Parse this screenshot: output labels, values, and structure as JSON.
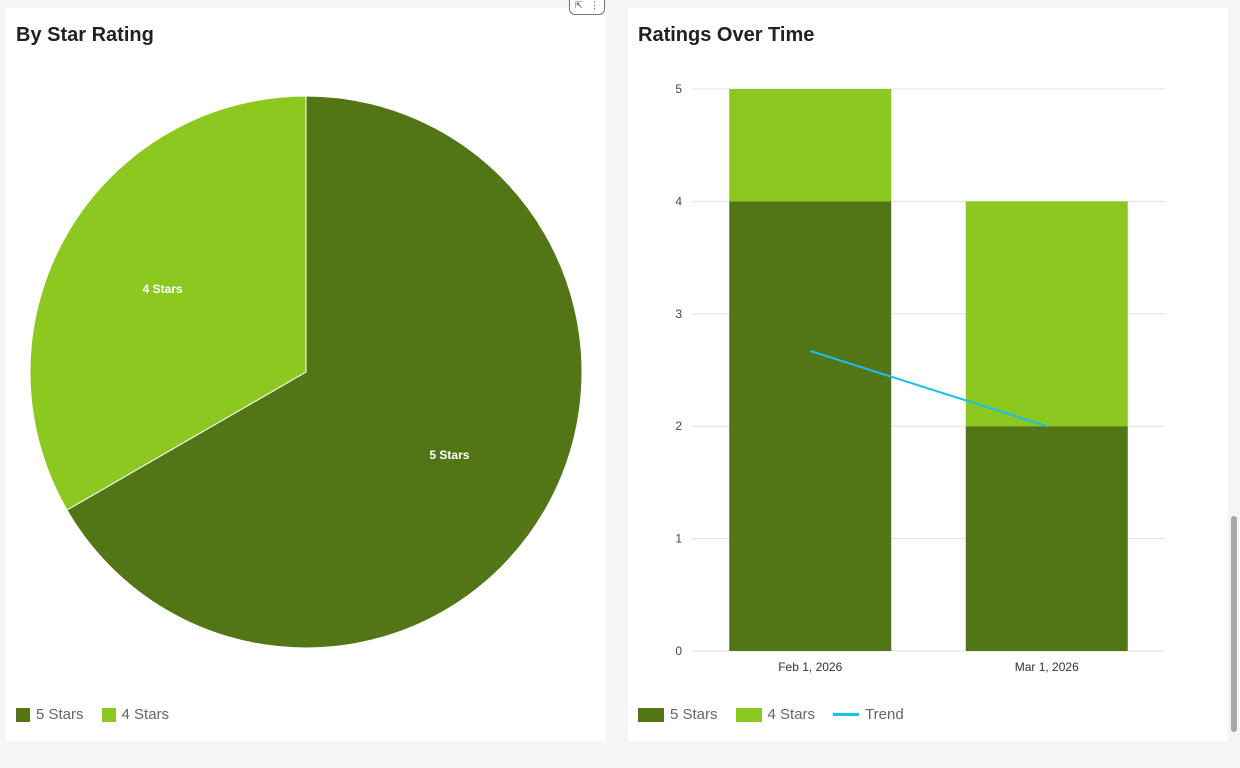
{
  "colors": {
    "five_stars": "#527516",
    "four_stars": "#8cc820",
    "trend": "#18bfef"
  },
  "card_menu": {
    "expand_icon": "expand-icon",
    "more_icon": "more-vert-icon",
    "expand_glyph": "⇱",
    "more_glyph": "⋮"
  },
  "chart_data": [
    {
      "type": "pie",
      "title": "By Star Rating",
      "slices": [
        {
          "label": "5 Stars",
          "value": 6
        },
        {
          "label": "4 Stars",
          "value": 3
        }
      ],
      "legend": {
        "position": "bottom-left",
        "entries": [
          "5 Stars",
          "4 Stars"
        ]
      }
    },
    {
      "type": "bar",
      "stacked": true,
      "title": "Ratings Over Time",
      "categories": [
        "Feb 1, 2026",
        "Mar 1, 2026"
      ],
      "series": [
        {
          "name": "5 Stars",
          "values": [
            4,
            2
          ]
        },
        {
          "name": "4 Stars",
          "values": [
            1,
            2
          ]
        }
      ],
      "trend": {
        "name": "Trend",
        "type": "line",
        "values": [
          2.67,
          2.0
        ]
      },
      "ylim": [
        0,
        5
      ],
      "yticks": [
        "0",
        "1",
        "2",
        "3",
        "4",
        "5"
      ],
      "grid": true,
      "legend": {
        "position": "bottom-left",
        "entries": [
          "5 Stars",
          "4 Stars",
          "Trend"
        ]
      }
    }
  ]
}
